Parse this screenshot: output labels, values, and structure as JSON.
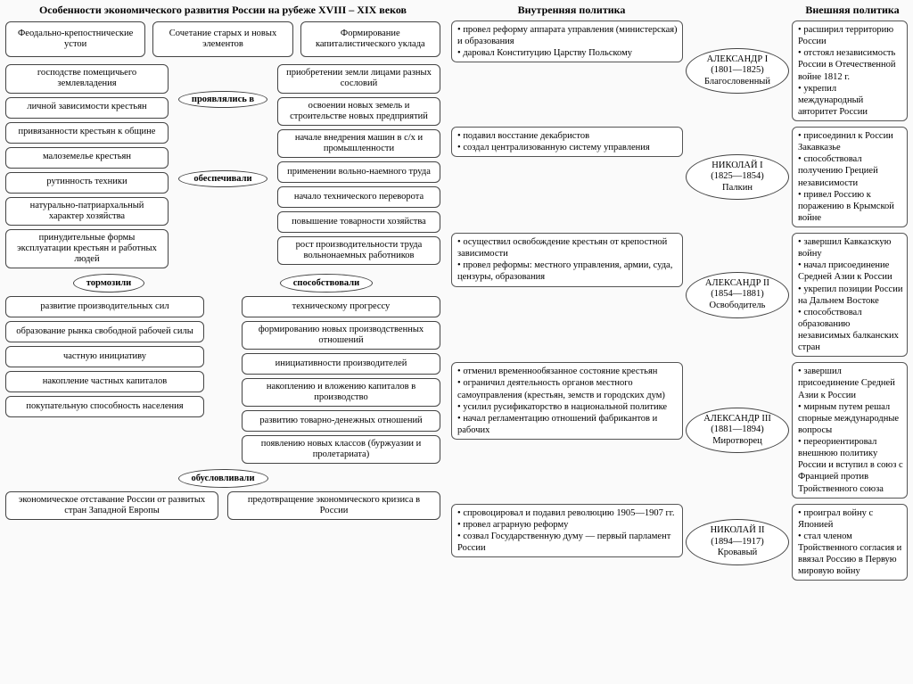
{
  "leftTitle": "Особенности экономического развития России на рубеже XVIII – XIX веков",
  "topBoxes": {
    "a": "Феодально-крепостнические устои",
    "b": "Сочетание старых и новых элементов",
    "c": "Формирование капиталистического уклада"
  },
  "leftCol": [
    "господстве помещичьего землевладения",
    "личной зависимости крестьян",
    "привязанности крестьян к общине",
    "малоземелье крестьян",
    "рутинность техники",
    "натурально-патриархальный характер хозяйства",
    "принудительные формы эксплуатации крестьян и работных людей"
  ],
  "rightCol": [
    "приобретении земли лицами разных сословий",
    "освоении новых земель и строительстве новых предприятий",
    "начале внедрения машин в с/х и промышленности",
    "применении вольно-наемного труда",
    "начало технического переворота",
    "повышение товарности хозяйства",
    "рост производительности труда вольнонаемных работников"
  ],
  "midOvals": {
    "proyav": "проявлялись в",
    "obesp": "обеспечивали"
  },
  "botOvals": {
    "torm": "тормозили",
    "sposob": "способствовали",
    "obusl": "обусловливали"
  },
  "leftBot": [
    "развитие производительных сил",
    "образование рынка свободной рабочей силы",
    "частную инициативу",
    "накопление частных капиталов",
    "покупательную способность населения"
  ],
  "rightBot": [
    "техническому прогрессу",
    "формированию новых производственных отношений",
    "инициативности производителей",
    "накоплению и вложению капиталов в производство",
    "развитию товарно-денежных отношений",
    "появлению новых классов (буржуазии и пролетариата)"
  ],
  "finalBoxes": {
    "a": "экономическое отставание России от развитых стран Западной Европы",
    "b": "предотвращение экономического кризиса в России"
  },
  "rpHeaders": {
    "inner": "Внутренняя политика",
    "outer": "Внешняя политика"
  },
  "rulers": [
    {
      "name": "АЛЕКСАНДР I",
      "years": "(1801—1825)",
      "nick": "Благословенный",
      "inner": [
        "провел реформу аппарата управления (министерская) и образования",
        "даровал Конституцию Царству Польскому"
      ],
      "outer": [
        "расширил территорию России",
        "отстоял независимость России в Отечественной войне 1812 г.",
        "укрепил международный авторитет России"
      ]
    },
    {
      "name": "НИКОЛАЙ I",
      "years": "(1825—1854)",
      "nick": "Палкин",
      "inner": [
        "подавил восстание декабристов",
        "создал централизованную систему управления"
      ],
      "outer": [
        "присоединил к России Закавказье",
        "способствовал получению Грецией независимости",
        "привел Россию к поражению в Крымской войне"
      ]
    },
    {
      "name": "АЛЕКСАНДР II",
      "years": "(1854—1881)",
      "nick": "Освободитель",
      "inner": [
        "осуществил освобождение крестьян от крепостной зависимости",
        "провел реформы: местного управления, армии, суда, цензуры, образования"
      ],
      "outer": [
        "завершил Кавказскую войну",
        "начал присоединение Средней Азии к России",
        "укрепил позиции России на Дальнем Востоке",
        "способствовал образованию независимых балканских стран"
      ]
    },
    {
      "name": "АЛЕКСАНДР III",
      "years": "(1881—1894)",
      "nick": "Миротворец",
      "inner": [
        "отменил временнообязанное состояние крестьян",
        "ограничил деятельность органов местного самоуправления (крестьян, земств и городских дум)",
        "усилил русификаторство в национальной политике",
        "начал регламентацию отношений фабрикантов и рабочих"
      ],
      "outer": [
        "завершил присоединение Средней Азии к России",
        "мирным путем решал спорные международные вопросы",
        "переориентировал внешнюю политику России и вступил в союз с Францией против Тройственного союза"
      ]
    },
    {
      "name": "НИКОЛАЙ II",
      "years": "(1894—1917)",
      "nick": "Кровавый",
      "inner": [
        "спровоцировал и подавил революцию 1905—1907 гг.",
        "провел аграрную реформу",
        "созвал Государственную думу — первый парламент России"
      ],
      "outer": [
        "проиграл войну с Японией",
        "стал членом Тройственного согласия и ввязал Россию в Первую мировую войну"
      ]
    }
  ]
}
